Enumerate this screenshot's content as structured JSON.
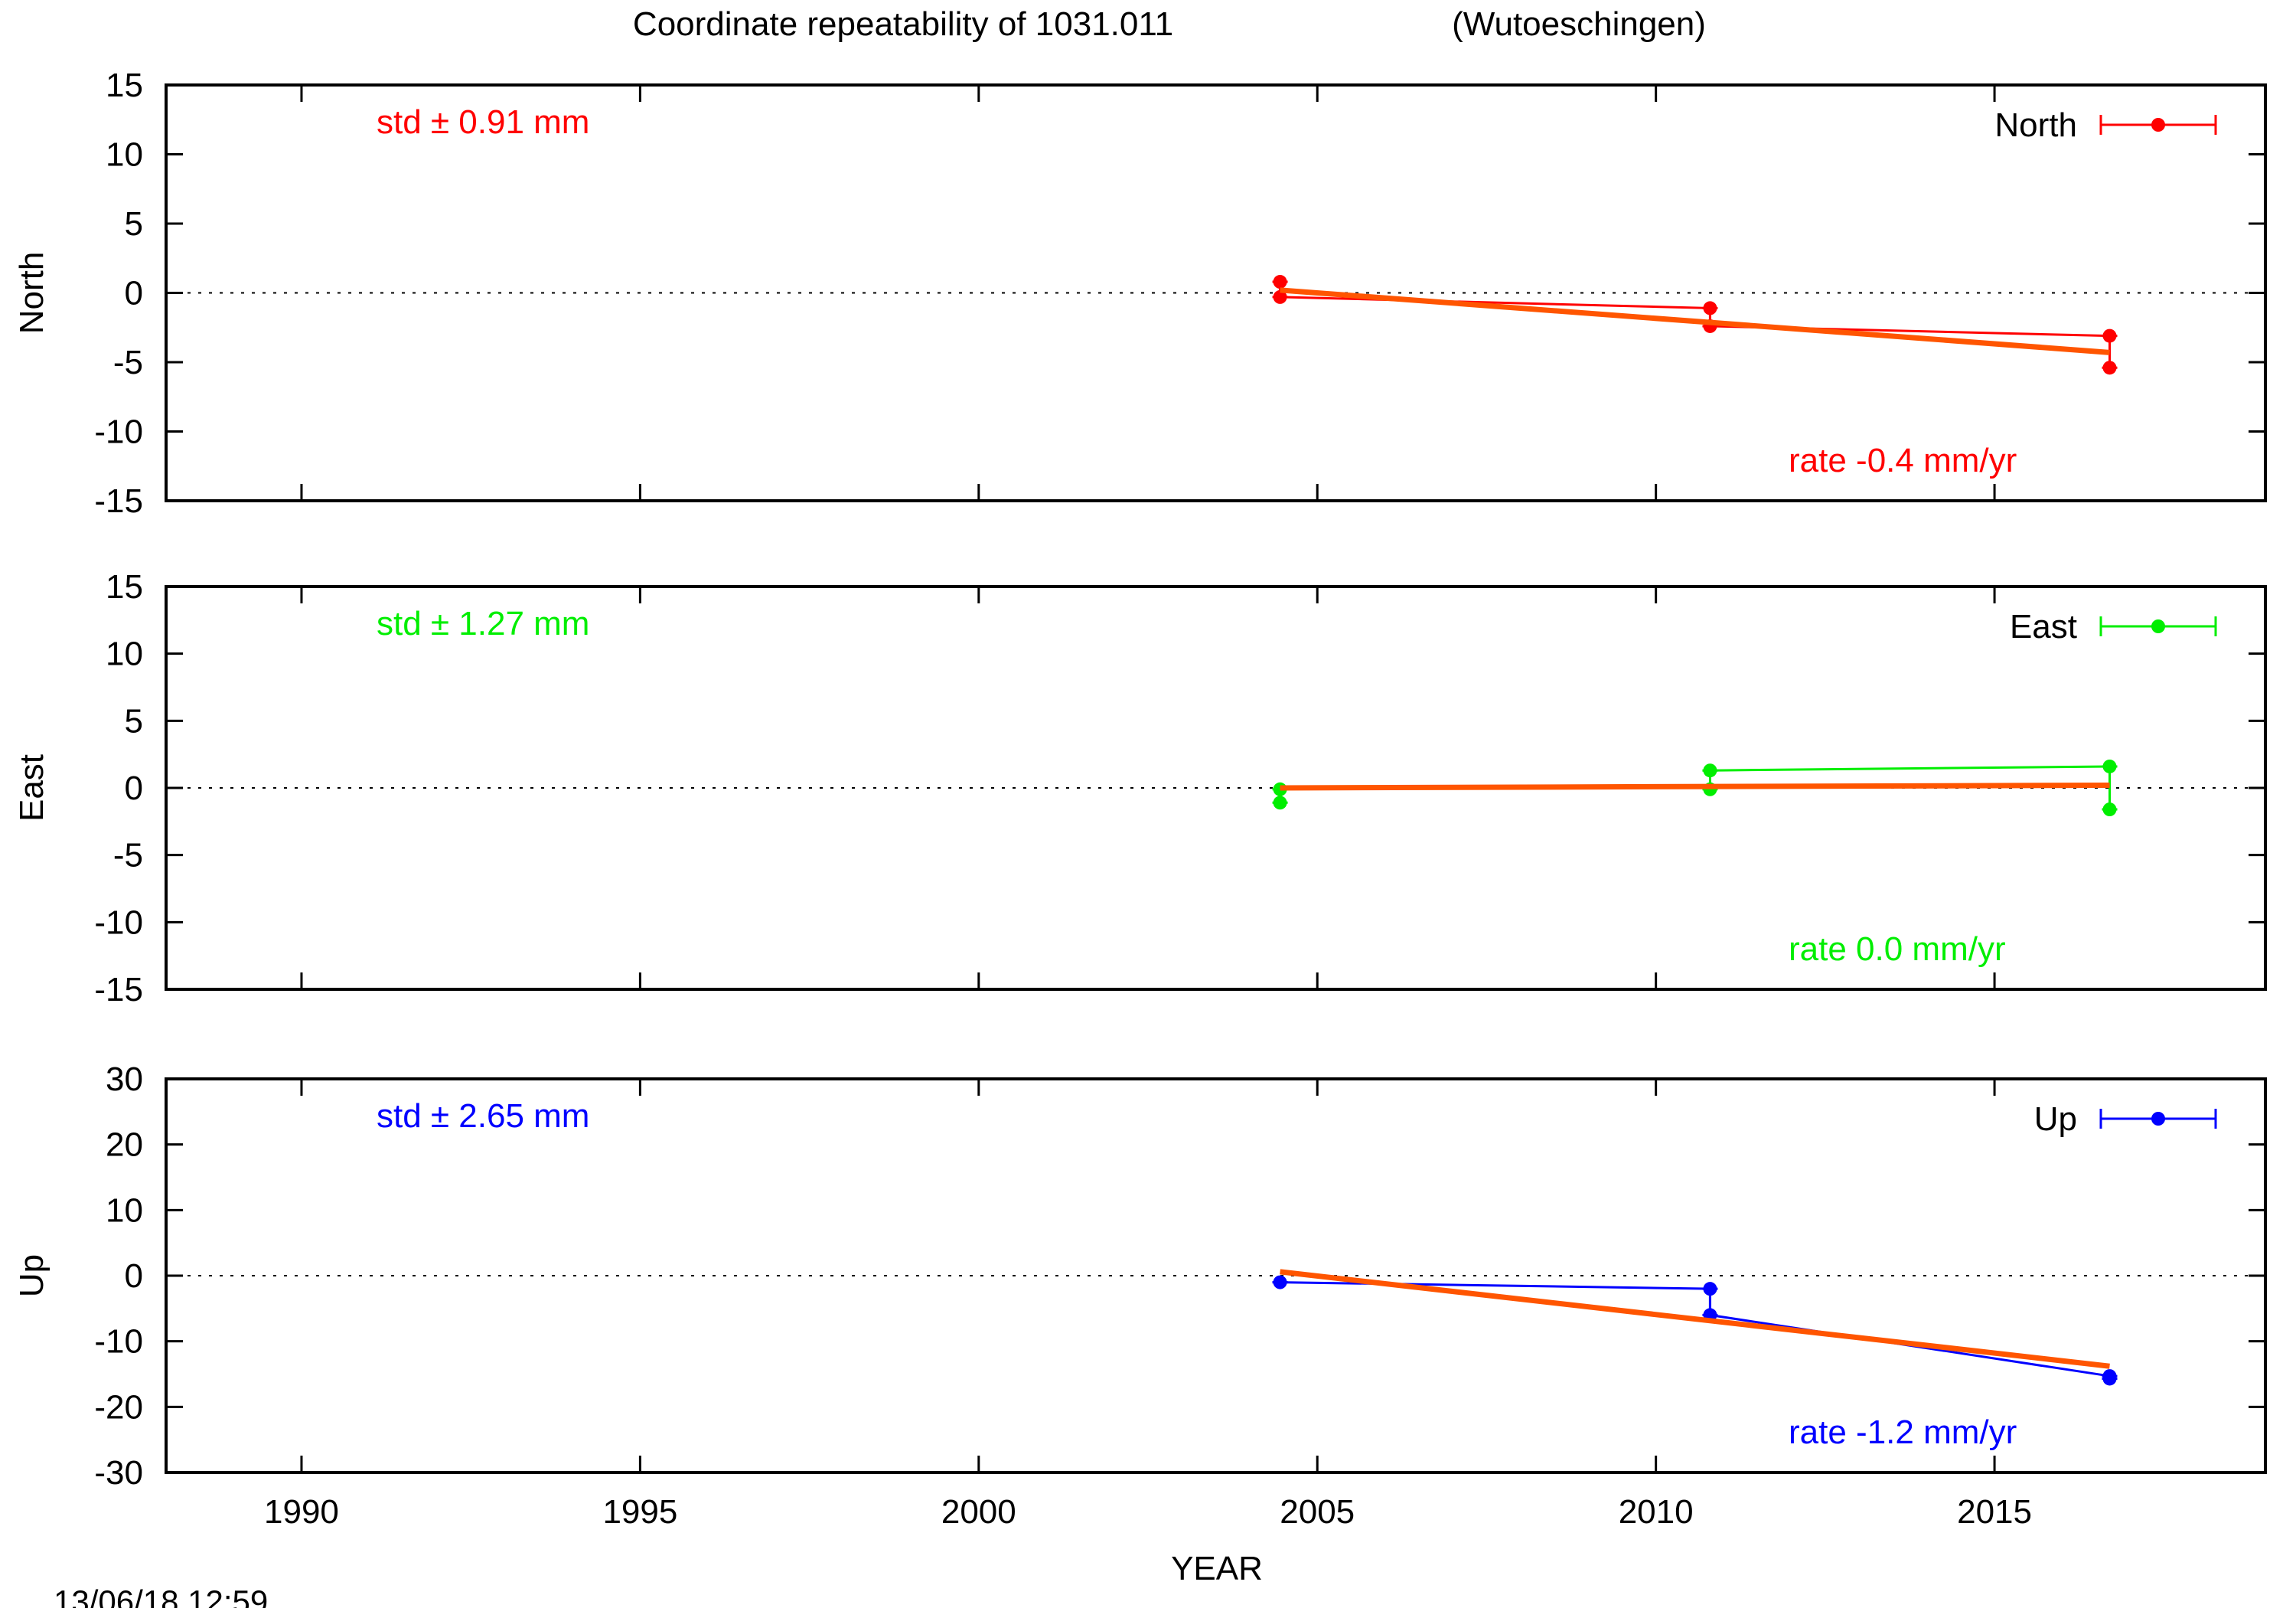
{
  "figure": {
    "title": "Coordinate repeatability of 1031.011",
    "station": "(Wutoeschingen)",
    "timestamp": "13/06/18 12:59",
    "xlabel": "YEAR",
    "fit_color": "#ff5500"
  },
  "chart_data": [
    {
      "type": "line",
      "component": "North",
      "ylabel": "North",
      "legend": "North",
      "color": "#ff0000",
      "std_text": "std ± 0.91 mm",
      "rate_text": "rate -0.4 mm/yr",
      "xlim": [
        1988,
        2019
      ],
      "ylim": [
        -15,
        15
      ],
      "xticks": [
        1990,
        1995,
        2000,
        2005,
        2010,
        2015
      ],
      "yticks": [
        -15,
        -10,
        -5,
        0,
        5,
        10,
        15
      ],
      "points": [
        {
          "x": 2004.45,
          "y": 0.8
        },
        {
          "x": 2004.45,
          "y": -0.3
        },
        {
          "x": 2010.8,
          "y": -1.1
        },
        {
          "x": 2010.8,
          "y": -2.4
        },
        {
          "x": 2016.7,
          "y": -3.1
        },
        {
          "x": 2016.7,
          "y": -5.4
        }
      ],
      "series_line": [
        {
          "x": 2004.45,
          "y": -0.3
        },
        {
          "x": 2010.8,
          "y": -1.1
        },
        {
          "x": 2010.8,
          "y": -2.4
        },
        {
          "x": 2016.7,
          "y": -3.1
        }
      ],
      "error_bars": [
        {
          "x": 2004.45,
          "low": -0.3,
          "high": 0.8
        },
        {
          "x": 2010.8,
          "low": -2.4,
          "high": -1.1
        },
        {
          "x": 2016.7,
          "low": -5.4,
          "high": -3.1
        }
      ],
      "fit": [
        {
          "x": 2004.45,
          "y": 0.2
        },
        {
          "x": 2016.7,
          "y": -4.3
        }
      ]
    },
    {
      "type": "line",
      "component": "East",
      "ylabel": "East",
      "legend": "East",
      "color": "#00ee00",
      "std_text": "std ± 1.27 mm",
      "rate_text": "rate  0.0 mm/yr",
      "xlim": [
        1988,
        2019
      ],
      "ylim": [
        -15,
        15
      ],
      "xticks": [
        1990,
        1995,
        2000,
        2005,
        2010,
        2015
      ],
      "yticks": [
        -15,
        -10,
        -5,
        0,
        5,
        10,
        15
      ],
      "points": [
        {
          "x": 2004.45,
          "y": -0.1
        },
        {
          "x": 2004.45,
          "y": -1.1
        },
        {
          "x": 2010.8,
          "y": 1.3
        },
        {
          "x": 2010.8,
          "y": -0.1
        },
        {
          "x": 2016.7,
          "y": 1.6
        },
        {
          "x": 2016.7,
          "y": -1.6
        }
      ],
      "series_line": [
        {
          "x": 2010.8,
          "y": 1.3
        },
        {
          "x": 2016.7,
          "y": 1.6
        }
      ],
      "error_bars": [
        {
          "x": 2004.45,
          "low": -1.1,
          "high": -0.1
        },
        {
          "x": 2010.8,
          "low": -0.1,
          "high": 1.3
        },
        {
          "x": 2016.7,
          "low": -1.6,
          "high": 1.6
        }
      ],
      "fit": [
        {
          "x": 2004.45,
          "y": 0.0
        },
        {
          "x": 2016.7,
          "y": 0.2
        }
      ]
    },
    {
      "type": "line",
      "component": "Up",
      "ylabel": "Up",
      "legend": "Up",
      "color": "#0000ff",
      "std_text": "std ± 2.65 mm",
      "rate_text": "rate -1.2 mm/yr",
      "xlim": [
        1988,
        2019
      ],
      "ylim": [
        -30,
        30
      ],
      "xticks": [
        1990,
        1995,
        2000,
        2005,
        2010,
        2015
      ],
      "yticks": [
        -30,
        -20,
        -10,
        0,
        10,
        20,
        30
      ],
      "points": [
        {
          "x": 2004.45,
          "y": -1.0
        },
        {
          "x": 2010.8,
          "y": -2.0
        },
        {
          "x": 2010.8,
          "y": -6.0
        },
        {
          "x": 2016.7,
          "y": -15.3
        },
        {
          "x": 2016.7,
          "y": -15.7
        }
      ],
      "series_line": [
        {
          "x": 2004.45,
          "y": -1.0
        },
        {
          "x": 2010.8,
          "y": -2.0
        },
        {
          "x": 2010.8,
          "y": -6.0
        },
        {
          "x": 2016.7,
          "y": -15.3
        }
      ],
      "error_bars": [
        {
          "x": 2004.45,
          "low": -1.0,
          "high": -1.0
        },
        {
          "x": 2010.8,
          "low": -6.0,
          "high": -2.0
        },
        {
          "x": 2016.7,
          "low": -15.7,
          "high": -15.3
        }
      ],
      "fit": [
        {
          "x": 2004.45,
          "y": 0.6
        },
        {
          "x": 2016.7,
          "y": -13.8
        }
      ]
    }
  ]
}
